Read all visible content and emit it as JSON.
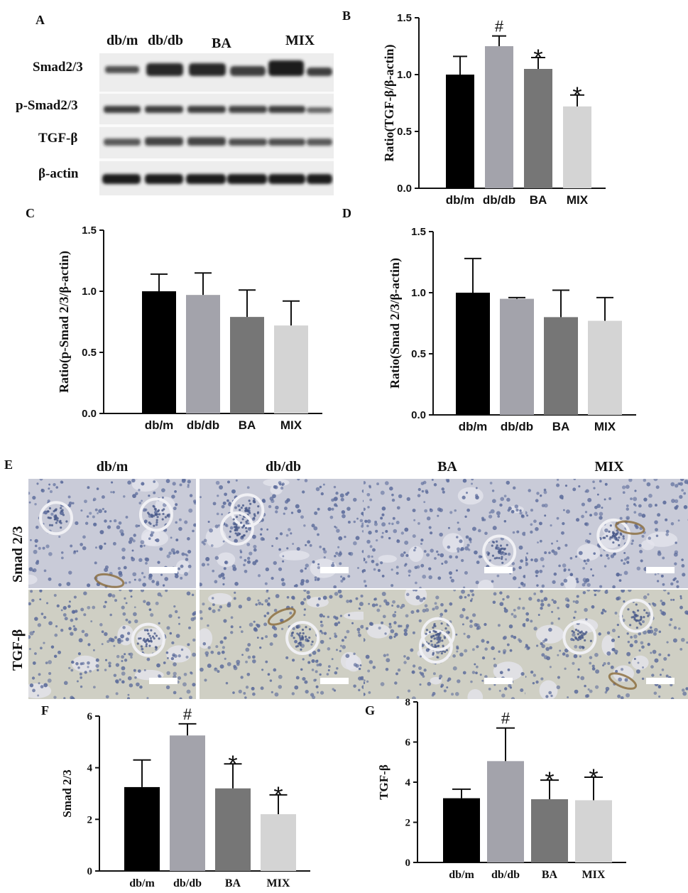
{
  "panels": {
    "A": "A",
    "B": "B",
    "C": "C",
    "D": "D",
    "E": "E",
    "F": "F",
    "G": "G"
  },
  "blot": {
    "groups": [
      "db/m",
      "db/db",
      "BA",
      "MIX"
    ],
    "rows": [
      "Smad2/3",
      "p-Smad2/3",
      "TGF-β",
      "β-actin"
    ]
  },
  "ihc": {
    "columns": [
      "db/m",
      "db/db",
      "BA",
      "MIX"
    ],
    "rows": [
      "Smad 2/3",
      "TGF-β"
    ]
  },
  "colors": {
    "db/m": "#000000",
    "db/db": "#a3a3ab",
    "BA": "#767676",
    "MIX": "#d4d4d4"
  },
  "chart_data": [
    {
      "id": "B",
      "type": "bar",
      "categories": [
        "db/m",
        "db/db",
        "BA",
        "MIX"
      ],
      "values": [
        1.0,
        1.25,
        1.05,
        0.72
      ],
      "errors": [
        0.16,
        0.09,
        0.1,
        0.1
      ],
      "annotations": [
        "",
        "#",
        "*",
        "*"
      ],
      "ylabel": "Ratio(TGF-β/β-actin)",
      "ylim": [
        0,
        1.5
      ],
      "yticks": [
        "0.0",
        "0.5",
        "1.0",
        "1.5"
      ]
    },
    {
      "id": "C",
      "type": "bar",
      "categories": [
        "db/m",
        "db/db",
        "BA",
        "MIX"
      ],
      "values": [
        1.0,
        0.97,
        0.79,
        0.72
      ],
      "errors": [
        0.14,
        0.18,
        0.22,
        0.2
      ],
      "annotations": [
        "",
        "",
        "",
        ""
      ],
      "ylabel": "Ratio(p-Smad 2/3/β-actin)",
      "ylim": [
        0,
        1.5
      ],
      "yticks": [
        "0.0",
        "0.5",
        "1.0",
        "1.5"
      ]
    },
    {
      "id": "D",
      "type": "bar",
      "categories": [
        "db/m",
        "db/db",
        "BA",
        "MIX"
      ],
      "values": [
        1.0,
        0.95,
        0.8,
        0.77
      ],
      "errors": [
        0.28,
        0.01,
        0.22,
        0.19
      ],
      "annotations": [
        "",
        "",
        "",
        ""
      ],
      "ylabel": "Ratio(Smad 2/3/β-actin)",
      "ylim": [
        0,
        1.5
      ],
      "yticks": [
        "0.0",
        "0.5",
        "1.0",
        "1.5"
      ]
    },
    {
      "id": "F",
      "type": "bar",
      "categories": [
        "db/m",
        "db/db",
        "BA",
        "MIX"
      ],
      "values": [
        3.25,
        5.25,
        3.2,
        2.2
      ],
      "errors": [
        1.05,
        0.45,
        0.95,
        0.75
      ],
      "annotations": [
        "",
        "#",
        "*",
        "*"
      ],
      "ylabel": "Smad 2/3",
      "ylim": [
        0,
        6
      ],
      "yticks": [
        "0",
        "2",
        "4",
        "6"
      ]
    },
    {
      "id": "G",
      "type": "bar",
      "categories": [
        "db/m",
        "db/db",
        "BA",
        "MIX"
      ],
      "values": [
        3.2,
        5.05,
        3.15,
        3.1
      ],
      "errors": [
        0.45,
        1.65,
        0.95,
        1.15
      ],
      "annotations": [
        "",
        "#",
        "*",
        "*"
      ],
      "ylabel": "TGF-β",
      "ylim": [
        0,
        8
      ],
      "yticks": [
        "0",
        "2",
        "4",
        "6",
        "8"
      ]
    }
  ]
}
